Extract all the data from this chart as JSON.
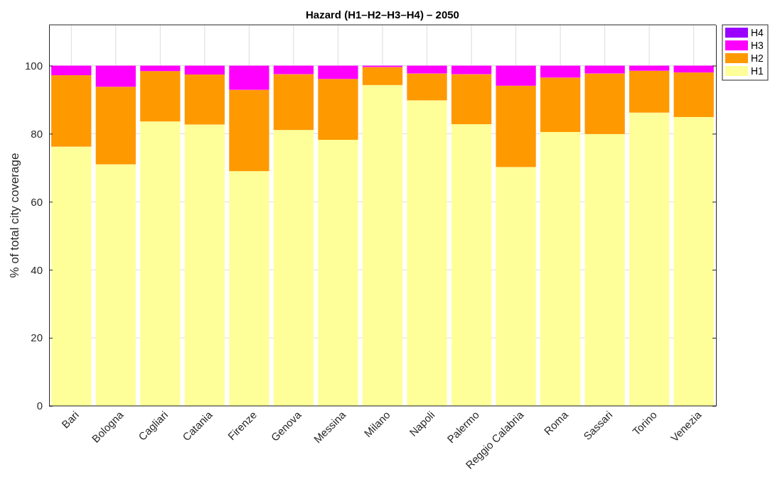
{
  "chart_data": {
    "type": "bar",
    "title": "Hazard (H1–H2–H3–H4) – 2050",
    "ylabel": "% of total city coverage",
    "categories": [
      "Bari",
      "Bologna",
      "Cagliari",
      "Catania",
      "Firenze",
      "Genova",
      "Messina",
      "Milano",
      "Napoli",
      "Palermo",
      "Reggio Calabria",
      "Roma",
      "Sassari",
      "Torino",
      "Venezia"
    ],
    "stacked": true,
    "ylim": [
      0,
      112
    ],
    "yticks": [
      0,
      20,
      40,
      60,
      80,
      100
    ],
    "grid": true,
    "legend": "top right",
    "series": [
      {
        "name": "H1",
        "color": "#ffff99",
        "values": [
          76.2,
          71.0,
          83.6,
          82.7,
          69.0,
          81.1,
          78.2,
          94.3,
          89.8,
          82.8,
          70.2,
          80.5,
          79.9,
          86.2,
          84.9
        ]
      },
      {
        "name": "H2",
        "color": "#ff9900",
        "values": [
          21.0,
          22.8,
          14.8,
          14.7,
          23.9,
          16.4,
          17.9,
          5.3,
          7.9,
          14.7,
          23.9,
          16.0,
          17.8,
          12.3,
          13.1
        ]
      },
      {
        "name": "H3",
        "color": "#ff00ff",
        "values": [
          2.8,
          6.2,
          1.6,
          2.6,
          7.1,
          2.5,
          3.9,
          0.4,
          2.3,
          2.5,
          5.9,
          3.5,
          2.3,
          1.5,
          2.0
        ]
      },
      {
        "name": "H4",
        "color": "#9900ff",
        "values": [
          0,
          0,
          0,
          0,
          0,
          0,
          0,
          0,
          0,
          0,
          0,
          0,
          0,
          0,
          0
        ]
      }
    ]
  }
}
